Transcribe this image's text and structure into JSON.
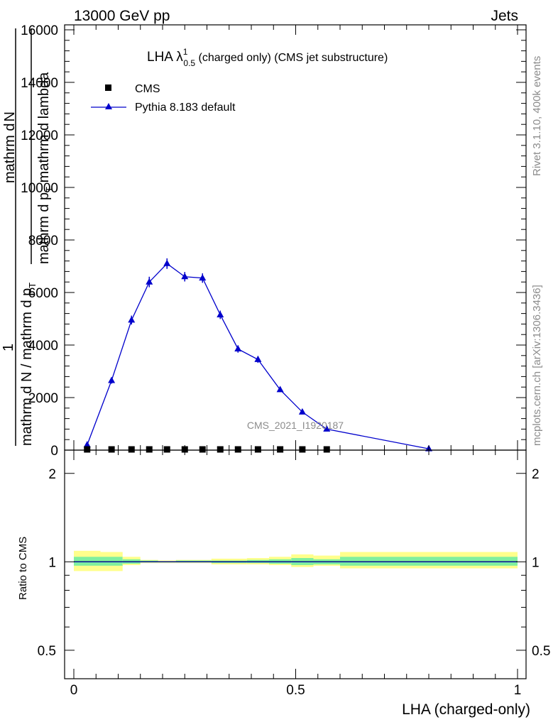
{
  "header": {
    "left": "13000 GeV pp",
    "right": "Jets"
  },
  "side_labels": {
    "rivet": "Rivet 3.1.10,  400k events",
    "mcplots": "mcplots.cern.ch [arXiv:1306.3436]"
  },
  "watermark": "CMS_2021_I1920187",
  "colors": {
    "mc": "#0000cc",
    "data": "#000000",
    "band_inner": "#7fef9f",
    "band_outer": "#ffff8c"
  },
  "chart_data": [
    {
      "type": "line",
      "title_main": "LHA λ",
      "title_sup": "1",
      "title_sub": "0.5",
      "title_rest": " (charged only) (CMS jet substructure)",
      "ylabel_top": "mathrm d",
      "ylabel_top2": "N",
      "ylabel_bot": "mathrm d p",
      "ylabel_bot2": "T",
      "ylabel_bot3": " mathrm d lambda",
      "ylabel_outer_num": "1",
      "ylabel_outer_den": "mathrm d N / mathrm d p",
      "ylabel_outer_den2": "T",
      "xlim": [
        -0.02,
        1.02
      ],
      "ylim": [
        0,
        16000
      ],
      "yticks": [
        0,
        2000,
        4000,
        6000,
        8000,
        10000,
        12000,
        14000,
        16000
      ],
      "ytick_labels": [
        "0",
        "2000",
        "4000",
        "6000",
        "8000",
        "10000",
        "12000",
        "14000",
        "16000"
      ],
      "legend": [
        {
          "name": "CMS",
          "marker": "square"
        },
        {
          "name": "Pythia 8.183 default",
          "marker": "triangle"
        }
      ],
      "series": [
        {
          "name": "CMS",
          "x": [
            0.03,
            0.085,
            0.13,
            0.17,
            0.21,
            0.25,
            0.29,
            0.33,
            0.37,
            0.415,
            0.465,
            0.515,
            0.57
          ],
          "y": [
            0,
            0,
            0,
            0,
            0,
            0,
            0,
            0,
            0,
            0,
            0,
            0,
            0
          ]
        },
        {
          "name": "Pythia 8.183 default",
          "x": [
            0.03,
            0.085,
            0.13,
            0.17,
            0.21,
            0.25,
            0.29,
            0.33,
            0.37,
            0.415,
            0.465,
            0.515,
            0.57,
            0.8
          ],
          "y": [
            200,
            2650,
            4950,
            6400,
            7100,
            6600,
            6550,
            5150,
            3850,
            3450,
            2300,
            1450,
            800,
            50
          ],
          "yerr": [
            120,
            120,
            170,
            200,
            200,
            180,
            180,
            160,
            140,
            130,
            90,
            80,
            60,
            30
          ]
        }
      ]
    },
    {
      "type": "line",
      "ylabel": "Ratio to CMS",
      "xlabel": "LHA (charged-only)",
      "xlim": [
        -0.02,
        1.02
      ],
      "ylim": [
        0.4,
        2.4
      ],
      "ylog": true,
      "yticks": [
        0.5,
        1,
        2
      ],
      "ytick_labels": [
        "0.5",
        "1",
        "2"
      ],
      "xticks": [
        0,
        0.5,
        1
      ],
      "xtick_labels": [
        "0",
        "0.5",
        "1"
      ],
      "bands": [
        {
          "x0": 0.0,
          "x1": 0.06,
          "inner": [
            0.97,
            1.04
          ],
          "outer": [
            0.93,
            1.09
          ]
        },
        {
          "x0": 0.06,
          "x1": 0.11,
          "inner": [
            0.97,
            1.04
          ],
          "outer": [
            0.93,
            1.08
          ]
        },
        {
          "x0": 0.11,
          "x1": 0.15,
          "inner": [
            0.985,
            1.02
          ],
          "outer": [
            0.975,
            1.04
          ]
        },
        {
          "x0": 0.15,
          "x1": 0.19,
          "inner": [
            0.995,
            1.01
          ],
          "outer": [
            0.99,
            1.015
          ]
        },
        {
          "x0": 0.19,
          "x1": 0.23,
          "inner": [
            0.995,
            1.005
          ],
          "outer": [
            0.99,
            1.01
          ]
        },
        {
          "x0": 0.23,
          "x1": 0.31,
          "inner": [
            0.995,
            1.01
          ],
          "outer": [
            0.99,
            1.015
          ]
        },
        {
          "x0": 0.31,
          "x1": 0.39,
          "inner": [
            0.99,
            1.01
          ],
          "outer": [
            0.98,
            1.025
          ]
        },
        {
          "x0": 0.39,
          "x1": 0.44,
          "inner": [
            0.99,
            1.015
          ],
          "outer": [
            0.98,
            1.03
          ]
        },
        {
          "x0": 0.44,
          "x1": 0.49,
          "inner": [
            0.985,
            1.02
          ],
          "outer": [
            0.975,
            1.04
          ]
        },
        {
          "x0": 0.49,
          "x1": 0.54,
          "inner": [
            0.975,
            1.03
          ],
          "outer": [
            0.96,
            1.06
          ]
        },
        {
          "x0": 0.54,
          "x1": 0.6,
          "inner": [
            0.98,
            1.02
          ],
          "outer": [
            0.97,
            1.05
          ]
        },
        {
          "x0": 0.6,
          "x1": 1.0,
          "inner": [
            0.97,
            1.04
          ],
          "outer": [
            0.95,
            1.08
          ]
        }
      ],
      "series": [
        {
          "name": "Pythia 8.183 default",
          "x": [
            0,
            1.0
          ],
          "y": [
            1.0,
            1.0
          ]
        }
      ]
    }
  ]
}
